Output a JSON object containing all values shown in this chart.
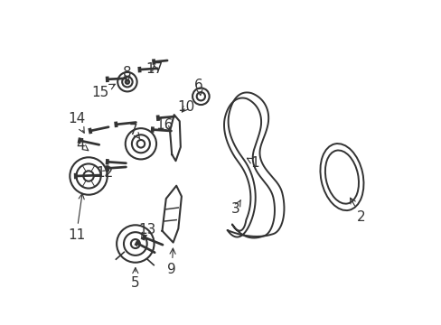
{
  "bg_color": "#ffffff",
  "line_color": "#333333",
  "lw": 1.5,
  "belt_lw": 1.4,
  "label_fontsize": 11,
  "arrow_color": "#333333",
  "arrows": {
    "1": {
      "lpos": [
        0.605,
        0.5
      ],
      "tpos": [
        0.578,
        0.515
      ]
    },
    "2": {
      "lpos": [
        0.935,
        0.33
      ],
      "tpos": [
        0.895,
        0.4
      ]
    },
    "3": {
      "lpos": [
        0.545,
        0.355
      ],
      "tpos": [
        0.562,
        0.385
      ]
    },
    "4": {
      "lpos": [
        0.065,
        0.555
      ],
      "tpos": [
        0.092,
        0.535
      ]
    },
    "5": {
      "lpos": [
        0.235,
        0.125
      ],
      "tpos": [
        0.235,
        0.185
      ]
    },
    "6": {
      "lpos": [
        0.432,
        0.74
      ],
      "tpos": [
        0.437,
        0.705
      ]
    },
    "7": {
      "lpos": [
        0.228,
        0.6
      ],
      "tpos": [
        0.25,
        0.572
      ]
    },
    "8": {
      "lpos": [
        0.21,
        0.778
      ],
      "tpos": [
        0.21,
        0.748
      ]
    },
    "9": {
      "lpos": [
        0.348,
        0.168
      ],
      "tpos": [
        0.352,
        0.245
      ]
    },
    "10": {
      "lpos": [
        0.392,
        0.672
      ],
      "tpos": [
        0.372,
        0.648
      ]
    },
    "11": {
      "lpos": [
        0.052,
        0.275
      ],
      "tpos": [
        0.072,
        0.415
      ]
    },
    "12": {
      "lpos": [
        0.14,
        0.468
      ],
      "tpos": [
        0.162,
        0.482
      ]
    },
    "13": {
      "lpos": [
        0.272,
        0.292
      ],
      "tpos": [
        0.252,
        0.262
      ]
    },
    "14": {
      "lpos": [
        0.052,
        0.635
      ],
      "tpos": [
        0.082,
        0.582
      ]
    },
    "15": {
      "lpos": [
        0.125,
        0.718
      ],
      "tpos": [
        0.182,
        0.748
      ]
    },
    "16": {
      "lpos": [
        0.325,
        0.615
      ],
      "tpos": [
        0.352,
        0.588
      ]
    },
    "17": {
      "lpos": [
        0.295,
        0.79
      ],
      "tpos": [
        0.292,
        0.805
      ]
    }
  }
}
